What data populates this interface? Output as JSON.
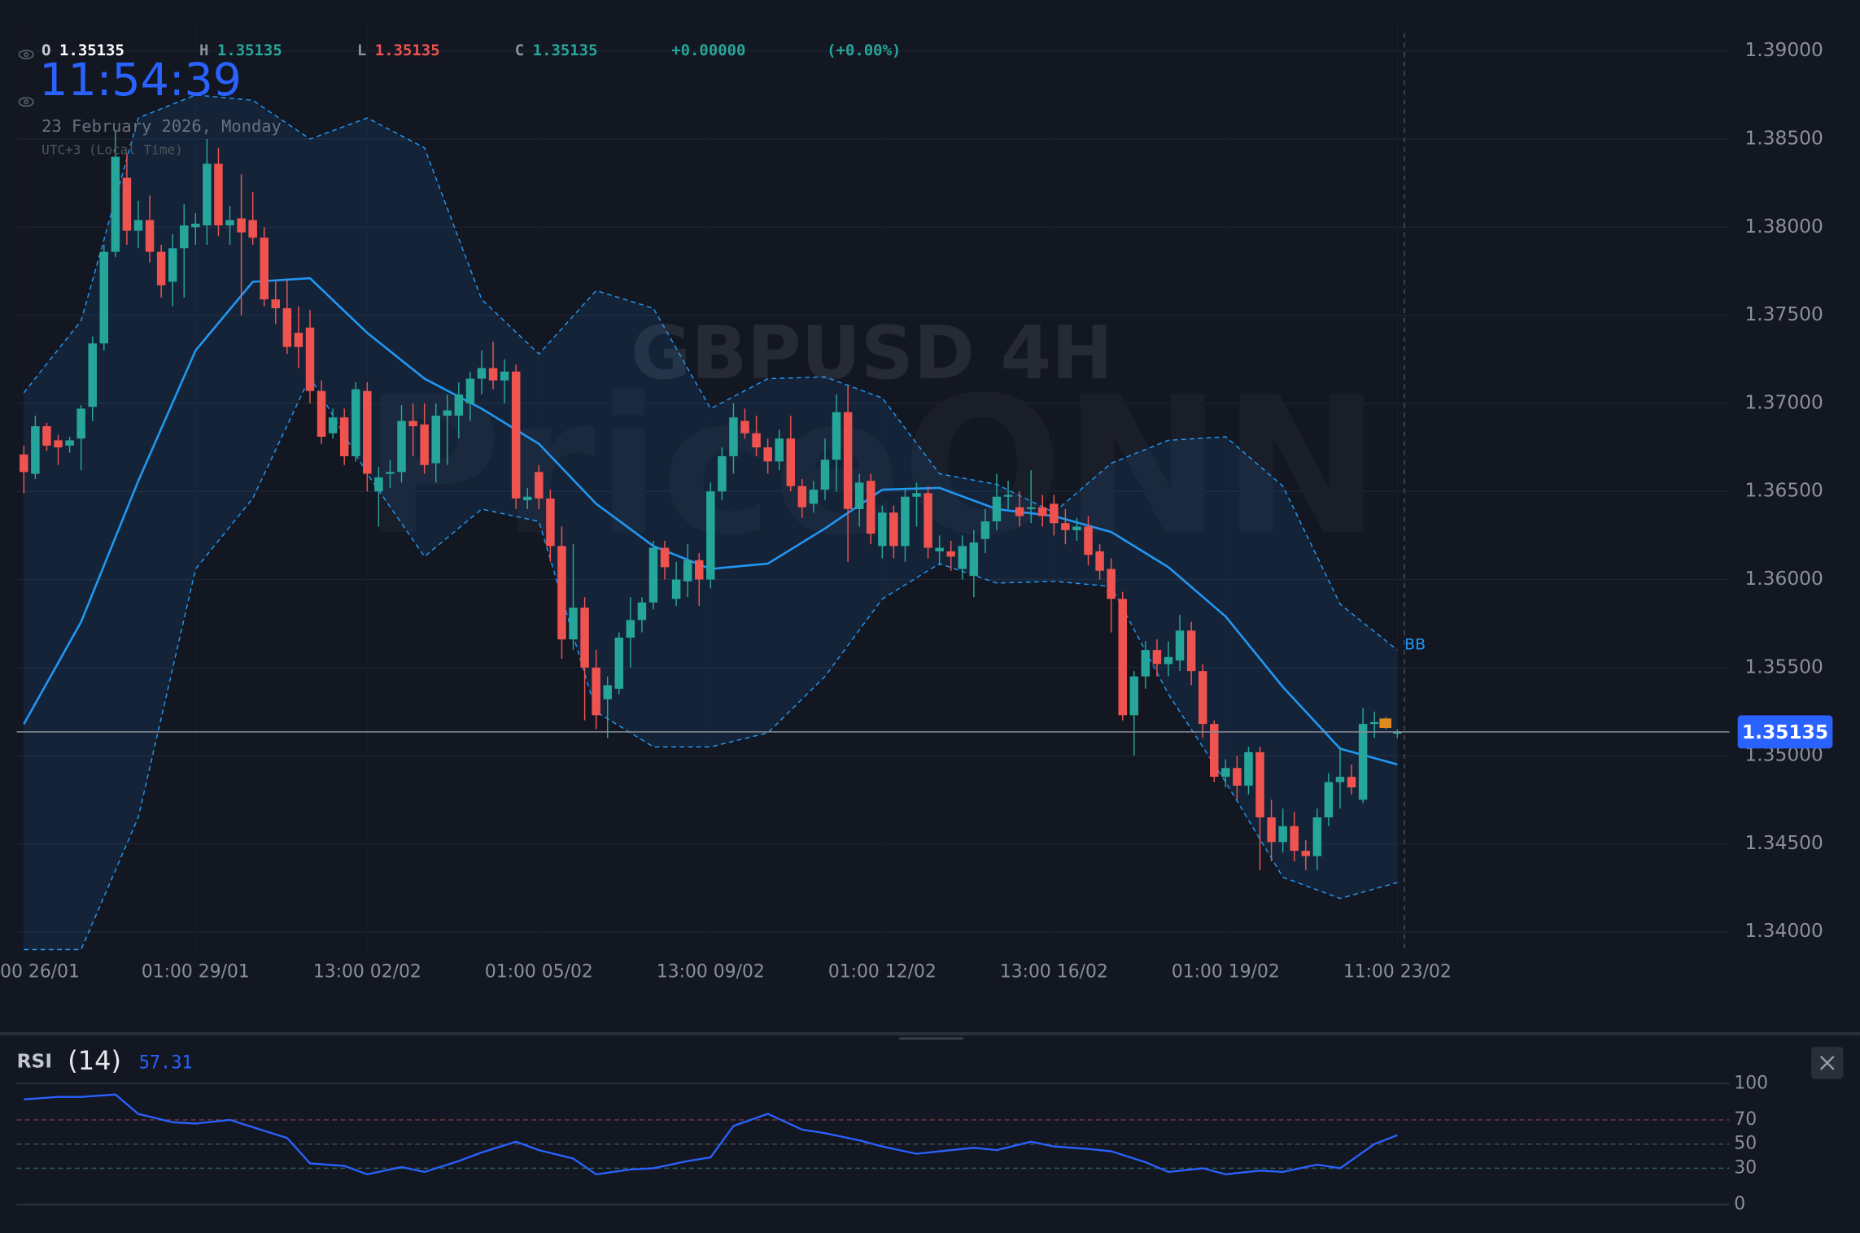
{
  "chart_data": {
    "type": "candlestick",
    "header": {
      "open_label": "O",
      "open": "1.35135",
      "high_label": "H",
      "high": "1.35135",
      "low_label": "L",
      "low": "1.35135",
      "close_label": "C",
      "close": "1.35135",
      "change": "+0.00000",
      "change_pct": "(+0.00%)"
    },
    "clock": "11:54:39",
    "date": "23 February 2026, Monday",
    "timezone": "UTC+3 (Local Time)",
    "watermark": "GBPUSD 4H",
    "brand": "PriceONN",
    "up_color": "#26a69a",
    "down_color": "#ef5350",
    "ylim": [
      1.34,
      1.39
    ],
    "yticks": [
      {
        "value": 1.34,
        "label": "1.34000"
      },
      {
        "value": 1.345,
        "label": "1.34500"
      },
      {
        "value": 1.35,
        "label": "1.35000"
      },
      {
        "value": 1.355,
        "label": "1.35500"
      },
      {
        "value": 1.36,
        "label": "1.36000"
      },
      {
        "value": 1.365,
        "label": "1.36500"
      },
      {
        "value": 1.37,
        "label": "1.37000"
      },
      {
        "value": 1.375,
        "label": "1.37500"
      },
      {
        "value": 1.38,
        "label": "1.38000"
      },
      {
        "value": 1.385,
        "label": "1.38500"
      },
      {
        "value": 1.39,
        "label": "1.39000"
      }
    ],
    "xticks": [
      {
        "value": 0,
        "label": "00 26/01"
      },
      {
        "value": 15,
        "label": "01:00 29/01"
      },
      {
        "value": 30,
        "label": "13:00 02/02"
      },
      {
        "value": 45,
        "label": "01:00 05/02"
      },
      {
        "value": 60,
        "label": "13:00 09/02"
      },
      {
        "value": 75,
        "label": "01:00 12/02"
      },
      {
        "value": 90,
        "label": "13:00 16/02"
      },
      {
        "value": 105,
        "label": "01:00 19/02"
      },
      {
        "value": 120,
        "label": "11:00 23/02"
      }
    ],
    "grid": true,
    "last_price": 1.35135,
    "open": [
      1.3671,
      1.366,
      1.3687,
      1.3679,
      1.3676,
      1.368,
      1.3698,
      1.3734,
      1.3786,
      1.3828,
      1.3798,
      1.3804,
      1.3786,
      1.3769,
      1.3788,
      1.38,
      1.3801,
      1.3836,
      1.3801,
      1.3805,
      1.3804,
      1.3794,
      1.3759,
      1.3754,
      1.374,
      1.3743,
      1.3707,
      1.3683,
      1.3692,
      1.367,
      1.3707,
      1.365,
      1.366,
      1.3661,
      1.369,
      1.3688,
      1.3666,
      1.3693,
      1.3693,
      1.37,
      1.3714,
      1.372,
      1.3713,
      1.3718,
      1.3645,
      1.3661,
      1.3646,
      1.3619,
      1.3566,
      1.3584,
      1.355,
      1.3532,
      1.3538,
      1.3567,
      1.3577,
      1.3587,
      1.3618,
      1.3589,
      1.3599,
      1.3611,
      1.36,
      1.365,
      1.367,
      1.369,
      1.3683,
      1.3675,
      1.3667,
      1.368,
      1.3653,
      1.3643,
      1.3651,
      1.3668,
      1.3695,
      1.364,
      1.3656,
      1.3619,
      1.3638,
      1.3619,
      1.3647,
      1.3649,
      1.3616,
      1.3616,
      1.3606,
      1.3602,
      1.3623,
      1.3633,
      1.3647,
      1.3641,
      1.364,
      1.3641,
      1.3643,
      1.3632,
      1.3628,
      1.363,
      1.3616,
      1.3606,
      1.3589,
      1.3523,
      1.3545,
      1.356,
      1.3552,
      1.3554,
      1.3571,
      1.3548,
      1.3518,
      1.3488,
      1.3493,
      1.3483,
      1.3502,
      1.3465,
      1.3451,
      1.346,
      1.3446,
      1.3443,
      1.3465,
      1.3485,
      1.3488,
      1.3475,
      1.3518,
      1.3519,
      1.3513
    ],
    "high": [
      1.3676,
      1.3693,
      1.3689,
      1.3682,
      1.3681,
      1.3699,
      1.3738,
      1.379,
      1.3855,
      1.3842,
      1.3815,
      1.3818,
      1.379,
      1.3796,
      1.3813,
      1.3808,
      1.385,
      1.3845,
      1.3812,
      1.383,
      1.382,
      1.38,
      1.377,
      1.377,
      1.3755,
      1.3753,
      1.3713,
      1.3697,
      1.3697,
      1.3712,
      1.3712,
      1.3664,
      1.3668,
      1.3699,
      1.37,
      1.37,
      1.37,
      1.3705,
      1.3712,
      1.3718,
      1.373,
      1.3735,
      1.3725,
      1.3722,
      1.3652,
      1.3665,
      1.3651,
      1.363,
      1.362,
      1.359,
      1.356,
      1.3545,
      1.357,
      1.359,
      1.359,
      1.3622,
      1.3622,
      1.361,
      1.362,
      1.3615,
      1.3655,
      1.3675,
      1.37,
      1.3697,
      1.3693,
      1.368,
      1.3685,
      1.3693,
      1.3657,
      1.3656,
      1.368,
      1.3705,
      1.371,
      1.366,
      1.366,
      1.3642,
      1.3642,
      1.3652,
      1.3655,
      1.3653,
      1.3625,
      1.3622,
      1.3625,
      1.3628,
      1.364,
      1.366,
      1.3656,
      1.365,
      1.3662,
      1.3648,
      1.3648,
      1.364,
      1.3635,
      1.3636,
      1.362,
      1.3612,
      1.3593,
      1.3548,
      1.3565,
      1.3566,
      1.3565,
      1.358,
      1.3576,
      1.3552,
      1.352,
      1.3498,
      1.35,
      1.3505,
      1.3505,
      1.3475,
      1.347,
      1.3468,
      1.3452,
      1.347,
      1.349,
      1.3505,
      1.3495,
      1.3527,
      1.3525,
      1.3522,
      1.3515
    ],
    "low": [
      1.3649,
      1.3657,
      1.3673,
      1.3665,
      1.3672,
      1.3662,
      1.369,
      1.373,
      1.3783,
      1.379,
      1.3788,
      1.378,
      1.376,
      1.3755,
      1.376,
      1.379,
      1.379,
      1.3795,
      1.379,
      1.375,
      1.379,
      1.3755,
      1.3745,
      1.3728,
      1.372,
      1.37,
      1.3677,
      1.368,
      1.3665,
      1.3667,
      1.365,
      1.363,
      1.3652,
      1.3655,
      1.367,
      1.366,
      1.3655,
      1.3665,
      1.368,
      1.369,
      1.3705,
      1.3708,
      1.37,
      1.364,
      1.364,
      1.364,
      1.361,
      1.3555,
      1.356,
      1.352,
      1.3515,
      1.351,
      1.3535,
      1.355,
      1.357,
      1.3583,
      1.36,
      1.3585,
      1.359,
      1.3585,
      1.3595,
      1.3645,
      1.366,
      1.368,
      1.367,
      1.366,
      1.3662,
      1.365,
      1.3635,
      1.3638,
      1.3645,
      1.365,
      1.361,
      1.363,
      1.362,
      1.3612,
      1.3612,
      1.361,
      1.363,
      1.3612,
      1.3608,
      1.3605,
      1.36,
      1.359,
      1.3615,
      1.3628,
      1.364,
      1.363,
      1.3632,
      1.363,
      1.3625,
      1.362,
      1.3622,
      1.3608,
      1.36,
      1.357,
      1.352,
      1.35,
      1.3538,
      1.3545,
      1.3545,
      1.3548,
      1.354,
      1.351,
      1.3485,
      1.3482,
      1.3475,
      1.3478,
      1.3435,
      1.344,
      1.3445,
      1.344,
      1.3435,
      1.3435,
      1.346,
      1.347,
      1.3478,
      1.3473,
      1.351,
      1.3515,
      1.351
    ],
    "close": [
      1.3661,
      1.3687,
      1.3676,
      1.3675,
      1.3679,
      1.3697,
      1.3734,
      1.3786,
      1.384,
      1.3798,
      1.3804,
      1.3786,
      1.3767,
      1.3788,
      1.3801,
      1.3802,
      1.3836,
      1.3801,
      1.3804,
      1.3797,
      1.3794,
      1.3759,
      1.3754,
      1.3732,
      1.3732,
      1.3707,
      1.3681,
      1.3692,
      1.367,
      1.3708,
      1.366,
      1.3658,
      1.3661,
      1.369,
      1.3687,
      1.3665,
      1.3693,
      1.3696,
      1.3705,
      1.3714,
      1.372,
      1.3713,
      1.3718,
      1.3646,
      1.3647,
      1.3646,
      1.3619,
      1.3566,
      1.3584,
      1.355,
      1.3523,
      1.354,
      1.3567,
      1.3577,
      1.3587,
      1.3618,
      1.3607,
      1.36,
      1.3611,
      1.36,
      1.365,
      1.367,
      1.3692,
      1.3683,
      1.3675,
      1.3667,
      1.368,
      1.3653,
      1.3641,
      1.3651,
      1.3668,
      1.3695,
      1.364,
      1.3655,
      1.3626,
      1.3638,
      1.3619,
      1.3647,
      1.3649,
      1.3618,
      1.3618,
      1.3613,
      1.3619,
      1.3621,
      1.3633,
      1.3647,
      1.3648,
      1.3636,
      1.3641,
      1.3636,
      1.3632,
      1.3628,
      1.363,
      1.3614,
      1.3605,
      1.3589,
      1.3523,
      1.3545,
      1.356,
      1.3552,
      1.3556,
      1.3571,
      1.3548,
      1.3518,
      1.3488,
      1.3493,
      1.3483,
      1.3502,
      1.3465,
      1.3451,
      1.346,
      1.3446,
      1.3443,
      1.3465,
      1.3485,
      1.3488,
      1.3482,
      1.3518,
      1.3519,
      1.352,
      1.35135
    ],
    "bollinger": {
      "label": "BB",
      "color": "#2196f3",
      "x": [
        0,
        5,
        10,
        15,
        20,
        25,
        30,
        35,
        40,
        45,
        50,
        55,
        60,
        65,
        70,
        75,
        80,
        85,
        90,
        95,
        100,
        105,
        110,
        115,
        120
      ],
      "upper": [
        1.3706,
        1.3747,
        1.3862,
        1.3875,
        1.3872,
        1.385,
        1.3862,
        1.3845,
        1.3759,
        1.3728,
        1.3764,
        1.3754,
        1.3697,
        1.3714,
        1.3715,
        1.3703,
        1.366,
        1.3654,
        1.3638,
        1.3666,
        1.3679,
        1.3681,
        1.3653,
        1.3586,
        1.356
      ],
      "middle": [
        1.3518,
        1.3576,
        1.3656,
        1.373,
        1.3769,
        1.3771,
        1.374,
        1.3714,
        1.3697,
        1.3677,
        1.3643,
        1.3619,
        1.3606,
        1.3609,
        1.3629,
        1.3651,
        1.3652,
        1.364,
        1.3636,
        1.3627,
        1.3607,
        1.3579,
        1.3539,
        1.3504,
        1.3495
      ],
      "lower": [
        1.339,
        1.339,
        1.3465,
        1.3606,
        1.3646,
        1.3715,
        1.366,
        1.3613,
        1.364,
        1.3633,
        1.3525,
        1.3505,
        1.3505,
        1.3513,
        1.3545,
        1.3589,
        1.3609,
        1.3598,
        1.3599,
        1.3596,
        1.3535,
        1.3485,
        1.3431,
        1.3419,
        1.3428
      ]
    },
    "rsi": {
      "name": "RSI",
      "period": "(14)",
      "color": "#2962ff",
      "x": [
        0,
        3,
        5,
        8,
        10,
        13,
        15,
        18,
        20,
        23,
        25,
        28,
        30,
        33,
        35,
        38,
        40,
        43,
        45,
        48,
        50,
        53,
        55,
        58,
        60,
        62,
        65,
        68,
        70,
        73,
        75,
        78,
        80,
        83,
        85,
        88,
        90,
        93,
        95,
        98,
        100,
        103,
        105,
        108,
        110,
        113,
        115,
        118,
        120
      ],
      "values": [
        87,
        89,
        89,
        91,
        75,
        68,
        67,
        70,
        64,
        55,
        34,
        32,
        25,
        31,
        27,
        36,
        43,
        52,
        45,
        38,
        25,
        29,
        30,
        36,
        39,
        65,
        75,
        62,
        59,
        53,
        48,
        42,
        44,
        47,
        45,
        52,
        48,
        46,
        44,
        35,
        27,
        30,
        25,
        28,
        27,
        33,
        30,
        50,
        57.31
      ],
      "ylim": [
        0,
        100
      ],
      "yticks": [
        100,
        70,
        50,
        30,
        0
      ],
      "tick_colors": [
        "#363a45",
        "#7a3a42",
        "#4a4f5c",
        "#2f5c5a",
        "#363a45"
      ]
    }
  }
}
